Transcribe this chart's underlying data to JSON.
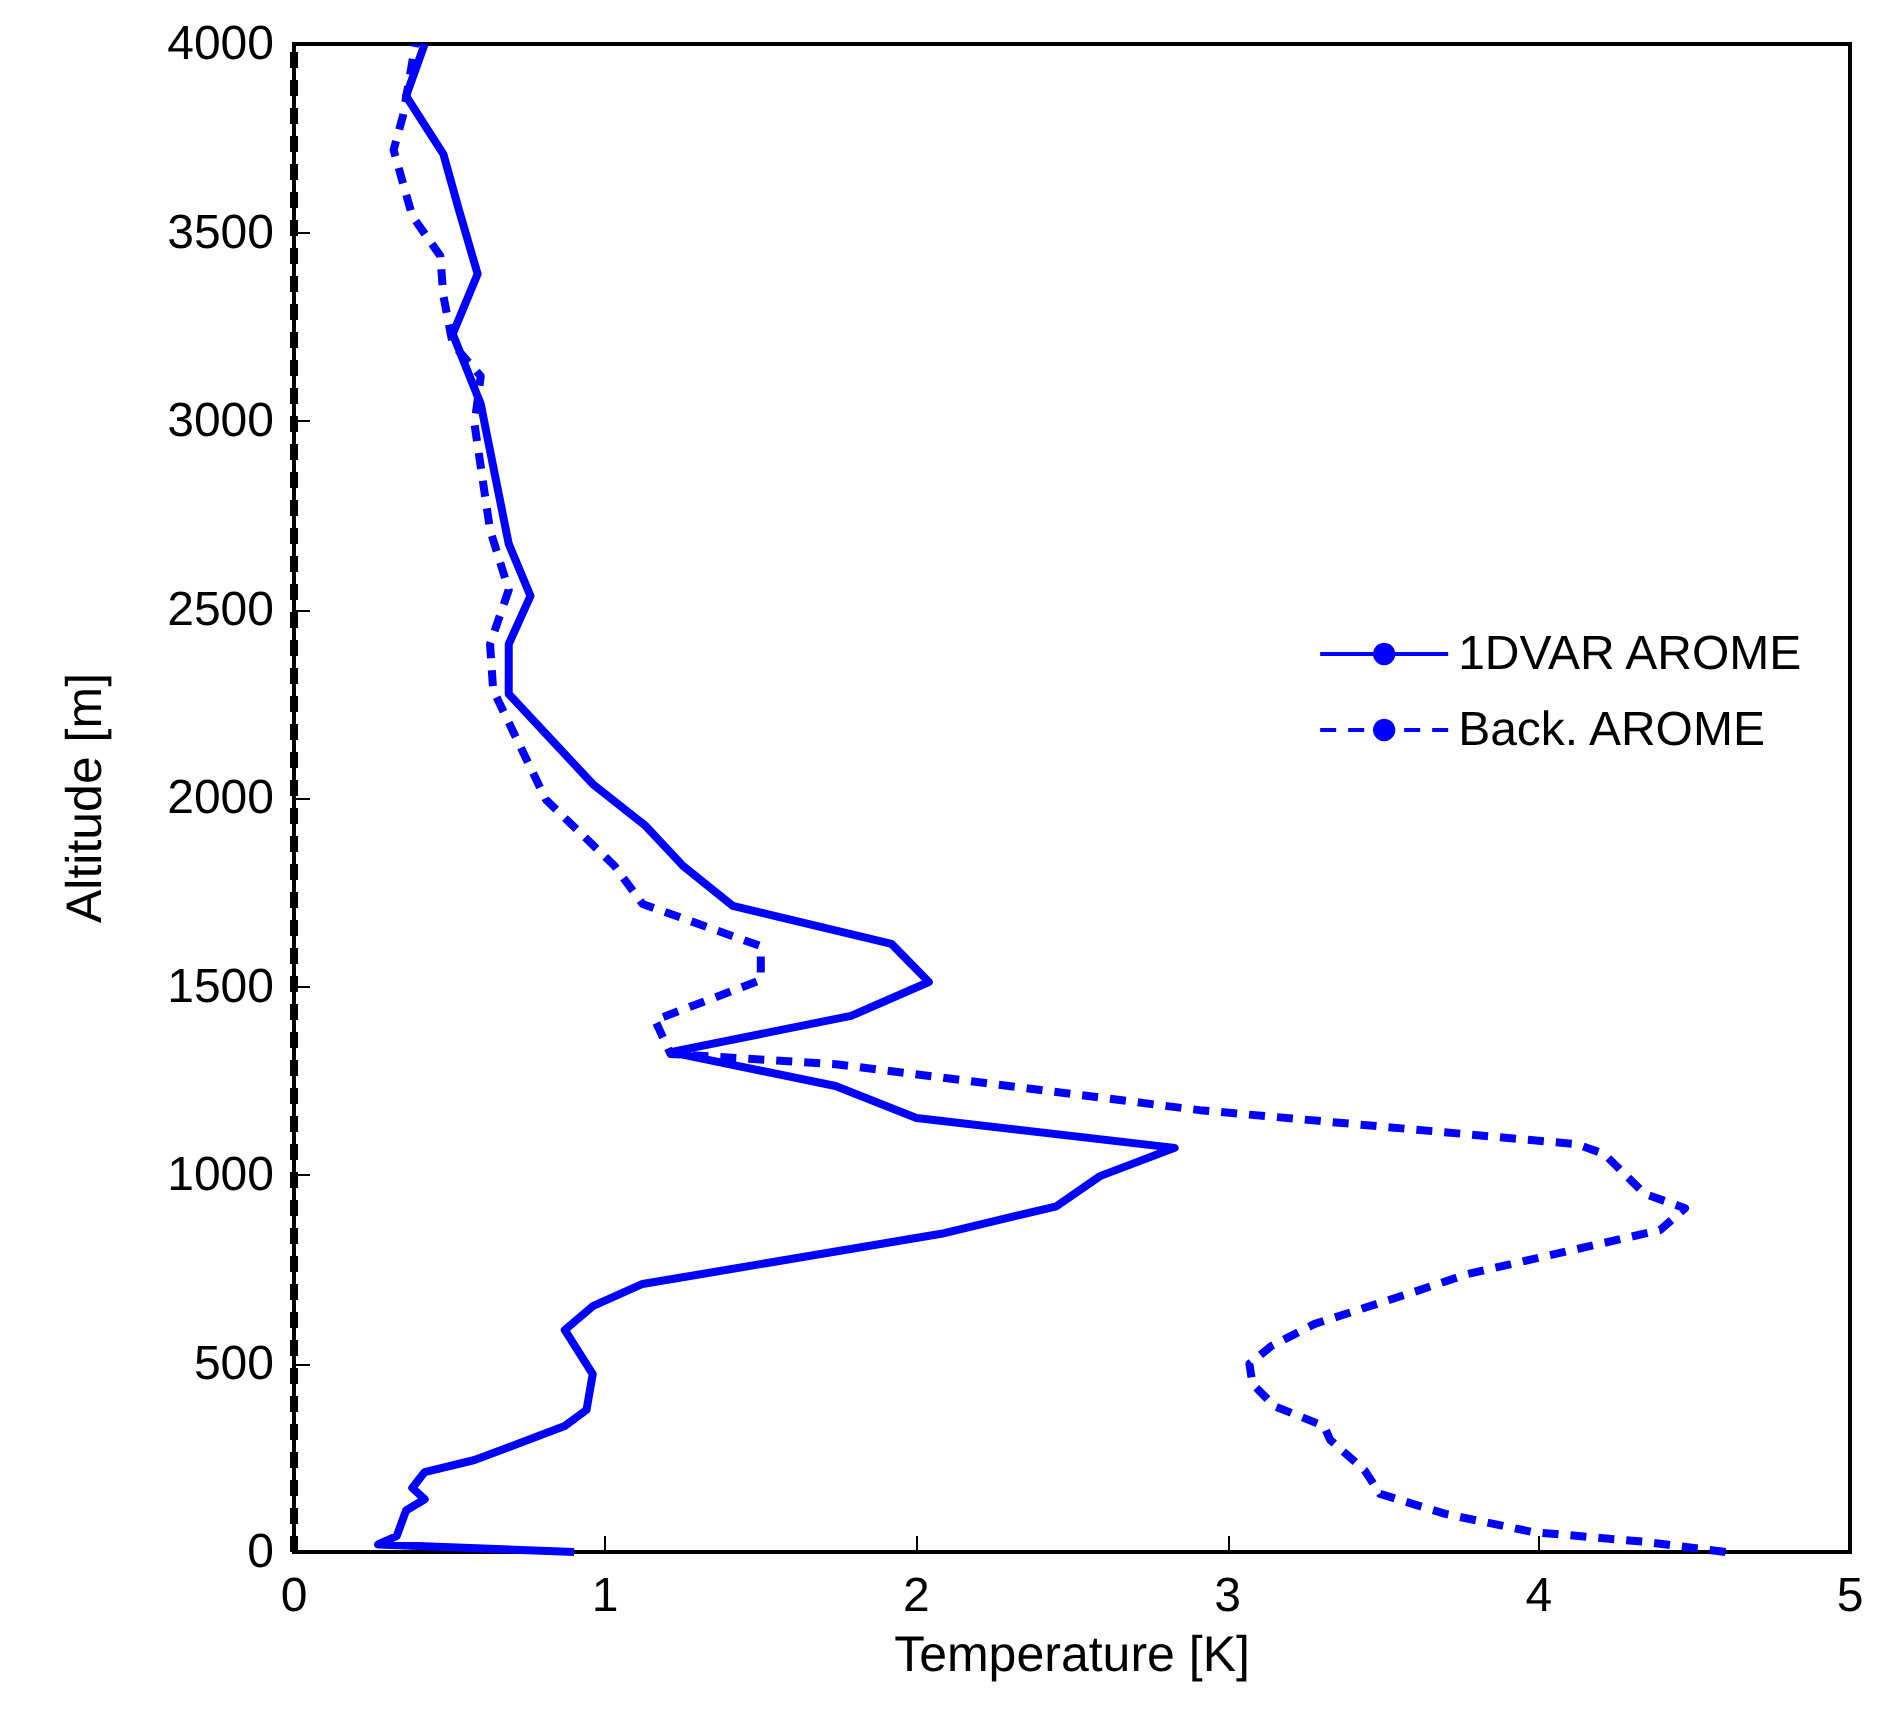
{
  "chart_data": {
    "type": "line",
    "xlabel": "Temperature [K]",
    "ylabel": "Altitude [m]",
    "xlim": [
      0,
      5
    ],
    "xticks": [
      0,
      1,
      2,
      3,
      4,
      5
    ],
    "ylim": [
      0,
      4000
    ],
    "yticks": [
      0,
      500,
      1000,
      1500,
      2000,
      2500,
      3000,
      3500,
      4000
    ],
    "grid": false,
    "legend": "right",
    "marker": "none",
    "ref_lines": [
      {
        "axis": "x",
        "value": 0,
        "color": "#000000",
        "line_style": "dashed"
      }
    ],
    "series": [
      {
        "name": "1DVAR AROME",
        "color": "#0000ff",
        "line_style": "solid",
        "x": [
          0.9,
          0.27,
          0.33,
          0.36,
          0.42,
          0.38,
          0.42,
          0.58,
          0.87,
          0.94,
          0.96,
          0.87,
          0.96,
          1.12,
          2.08,
          2.45,
          2.59,
          2.83,
          2.0,
          1.74,
          1.21,
          1.79,
          2.04,
          1.92,
          1.41,
          1.25,
          1.13,
          0.96,
          0.69,
          0.69,
          0.76,
          0.69,
          0.6,
          0.51,
          0.59,
          0.53,
          0.48,
          0.36,
          0.42
        ],
        "values": [
          0,
          20,
          42,
          110,
          140,
          170,
          212,
          244,
          334,
          377,
          472,
          589,
          652,
          711,
          844,
          917,
          997,
          1072,
          1151,
          1236,
          1326,
          1422,
          1512,
          1613,
          1714,
          1820,
          1926,
          2037,
          2276,
          2408,
          2536,
          2674,
          3045,
          3231,
          3390,
          3560,
          3708,
          3862,
          4000
        ]
      },
      {
        "name": "Back. AROME",
        "color": "#0000ff",
        "line_style": "dashed",
        "x": [
          4.6,
          4.34,
          3.98,
          3.7,
          3.49,
          3.44,
          3.33,
          3.31,
          3.15,
          3.08,
          3.07,
          3.14,
          3.28,
          3.6,
          3.77,
          4.39,
          4.47,
          4.34,
          4.21,
          4.12,
          2.91,
          1.74,
          1.21,
          1.16,
          1.5,
          1.5,
          1.12,
          1.03,
          0.81,
          0.64,
          0.63,
          0.69,
          0.63,
          0.58,
          0.6,
          0.51,
          0.48,
          0.47,
          0.38,
          0.32,
          0.35,
          0.39
        ],
        "values": [
          0,
          27,
          53,
          101,
          154,
          217,
          297,
          334,
          387,
          446,
          499,
          546,
          605,
          690,
          737,
          854,
          912,
          950,
          1056,
          1082,
          1172,
          1294,
          1321,
          1411,
          1517,
          1607,
          1719,
          1820,
          1995,
          2286,
          2408,
          2552,
          2711,
          2992,
          3119,
          3204,
          3332,
          3438,
          3544,
          3719,
          3809,
          4000
        ]
      }
    ]
  }
}
